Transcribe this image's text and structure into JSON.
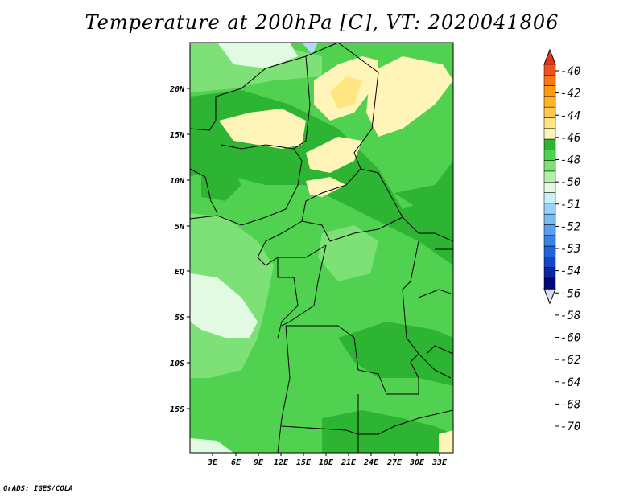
{
  "title": "Temperature at 200hPa [C], VT: 2020041806",
  "credit": "GrADS: IGES/COLA",
  "map": {
    "lat_ticks": [
      "20N",
      "15N",
      "10N",
      "5N",
      "EQ",
      "5S",
      "10S",
      "15S"
    ],
    "lon_ticks": [
      "3E",
      "6E",
      "9E",
      "12E",
      "15E",
      "18E",
      "21E",
      "24E",
      "27E",
      "30E",
      "33E"
    ]
  },
  "colorbar": {
    "levels": [
      {
        "label": "-40",
        "color": "#f0501e"
      },
      {
        "label": "-42",
        "color": "#fa7814"
      },
      {
        "label": "-44",
        "color": "#ff9a12"
      },
      {
        "label": "-46",
        "color": "#ffb428"
      },
      {
        "label": "-48",
        "color": "#ffc850"
      },
      {
        "label": "-50",
        "color": "#ffe682"
      },
      {
        "label": "-51",
        "color": "#fff5b9"
      },
      {
        "label": "-52",
        "color": "#2db432"
      },
      {
        "label": "-53",
        "color": "#50d250"
      },
      {
        "label": "-54",
        "color": "#7ee178"
      },
      {
        "label": "-56",
        "color": "#b4f0aa"
      },
      {
        "label": "-58",
        "color": "#e1fae1"
      },
      {
        "label": "-60",
        "color": "#c8f0fa"
      },
      {
        "label": "-62",
        "color": "#96d2fa"
      },
      {
        "label": "-64",
        "color": "#78bef0"
      },
      {
        "label": "-68",
        "color": "#5aa0f0"
      },
      {
        "label": "-70",
        "color": "#3c82e6"
      }
    ],
    "extra_colors": [
      "#1e64dc",
      "#1446c8",
      "#0a28a0",
      "#000a78"
    ],
    "top_arrow_color": "#e6321e",
    "bottom_arrow_color": "#dcdcf0"
  }
}
